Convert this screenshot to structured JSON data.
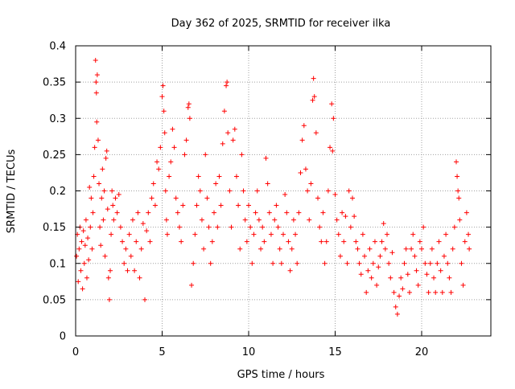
{
  "chart_data": {
    "type": "scatter",
    "title": "Day 362 of 2025, SRMTID for receiver ilka",
    "xlabel": "GPS time / hours",
    "ylabel": "SRMTID / TECUs",
    "xlim": [
      0,
      24
    ],
    "ylim": [
      0,
      0.4
    ],
    "xticks": [
      0,
      5,
      10,
      15,
      20
    ],
    "xtick_labels": [
      "0",
      "5",
      "10",
      "15",
      "20"
    ],
    "yticks": [
      0,
      0.05,
      0.1,
      0.15,
      0.2,
      0.25,
      0.3,
      0.35,
      0.4
    ],
    "ytick_labels": [
      "0",
      "0.05",
      "0.1",
      "0.15",
      "0.2",
      "0.25",
      "0.3",
      "0.35",
      "0.4"
    ],
    "grid": true,
    "legend": "none",
    "marker": "+",
    "series": [
      {
        "color": "#ff0000",
        "points": [
          [
            0.05,
            0.11
          ],
          [
            0.1,
            0.14
          ],
          [
            0.15,
            0.075
          ],
          [
            0.2,
            0.12
          ],
          [
            0.25,
            0.15
          ],
          [
            0.3,
            0.09
          ],
          [
            0.35,
            0.13
          ],
          [
            0.4,
            0.065
          ],
          [
            0.45,
            0.145
          ],
          [
            0.5,
            0.1
          ],
          [
            0.55,
            0.125
          ],
          [
            0.6,
            0.16
          ],
          [
            0.65,
            0.08
          ],
          [
            0.7,
            0.135
          ],
          [
            0.75,
            0.105
          ],
          [
            0.8,
            0.205
          ],
          [
            0.85,
            0.15
          ],
          [
            0.9,
            0.19
          ],
          [
            0.95,
            0.12
          ],
          [
            1.0,
            0.17
          ],
          [
            1.05,
            0.22
          ],
          [
            1.1,
            0.26
          ],
          [
            1.15,
            0.38
          ],
          [
            1.18,
            0.35
          ],
          [
            1.2,
            0.335
          ],
          [
            1.22,
            0.295
          ],
          [
            1.25,
            0.36
          ],
          [
            1.3,
            0.27
          ],
          [
            1.35,
            0.21
          ],
          [
            1.4,
            0.15
          ],
          [
            1.45,
            0.125
          ],
          [
            1.5,
            0.19
          ],
          [
            1.55,
            0.23
          ],
          [
            1.6,
            0.16
          ],
          [
            1.65,
            0.2
          ],
          [
            1.7,
            0.11
          ],
          [
            1.75,
            0.245
          ],
          [
            1.8,
            0.255
          ],
          [
            1.85,
            0.175
          ],
          [
            1.9,
            0.08
          ],
          [
            1.95,
            0.05
          ],
          [
            2.0,
            0.09
          ],
          [
            2.05,
            0.14
          ],
          [
            2.1,
            0.2
          ],
          [
            2.15,
            0.18
          ],
          [
            2.2,
            0.16
          ],
          [
            2.3,
            0.19
          ],
          [
            2.4,
            0.17
          ],
          [
            2.5,
            0.195
          ],
          [
            2.6,
            0.15
          ],
          [
            2.7,
            0.13
          ],
          [
            2.8,
            0.1
          ],
          [
            2.9,
            0.12
          ],
          [
            3.0,
            0.09
          ],
          [
            3.1,
            0.14
          ],
          [
            3.2,
            0.11
          ],
          [
            3.3,
            0.16
          ],
          [
            3.4,
            0.09
          ],
          [
            3.5,
            0.13
          ],
          [
            3.6,
            0.17
          ],
          [
            3.7,
            0.08
          ],
          [
            3.8,
            0.12
          ],
          [
            3.9,
            0.155
          ],
          [
            4.0,
            0.05
          ],
          [
            4.1,
            0.145
          ],
          [
            4.2,
            0.17
          ],
          [
            4.3,
            0.13
          ],
          [
            4.4,
            0.19
          ],
          [
            4.5,
            0.21
          ],
          [
            4.6,
            0.18
          ],
          [
            4.7,
            0.24
          ],
          [
            4.8,
            0.23
          ],
          [
            4.9,
            0.26
          ],
          [
            5.0,
            0.33
          ],
          [
            5.05,
            0.345
          ],
          [
            5.1,
            0.31
          ],
          [
            5.15,
            0.28
          ],
          [
            5.2,
            0.2
          ],
          [
            5.25,
            0.16
          ],
          [
            5.3,
            0.14
          ],
          [
            5.4,
            0.22
          ],
          [
            5.5,
            0.24
          ],
          [
            5.6,
            0.285
          ],
          [
            5.7,
            0.26
          ],
          [
            5.8,
            0.19
          ],
          [
            5.9,
            0.17
          ],
          [
            6.0,
            0.15
          ],
          [
            6.1,
            0.13
          ],
          [
            6.2,
            0.18
          ],
          [
            6.3,
            0.25
          ],
          [
            6.4,
            0.27
          ],
          [
            6.5,
            0.315
          ],
          [
            6.55,
            0.32
          ],
          [
            6.6,
            0.3
          ],
          [
            6.7,
            0.07
          ],
          [
            6.8,
            0.1
          ],
          [
            6.9,
            0.14
          ],
          [
            7.0,
            0.18
          ],
          [
            7.1,
            0.22
          ],
          [
            7.2,
            0.2
          ],
          [
            7.3,
            0.16
          ],
          [
            7.4,
            0.12
          ],
          [
            7.5,
            0.25
          ],
          [
            7.6,
            0.19
          ],
          [
            7.7,
            0.15
          ],
          [
            7.8,
            0.1
          ],
          [
            7.9,
            0.13
          ],
          [
            8.0,
            0.17
          ],
          [
            8.1,
            0.21
          ],
          [
            8.2,
            0.15
          ],
          [
            8.3,
            0.22
          ],
          [
            8.4,
            0.18
          ],
          [
            8.5,
            0.265
          ],
          [
            8.6,
            0.31
          ],
          [
            8.7,
            0.345
          ],
          [
            8.75,
            0.35
          ],
          [
            8.8,
            0.28
          ],
          [
            8.9,
            0.2
          ],
          [
            9.0,
            0.15
          ],
          [
            9.1,
            0.27
          ],
          [
            9.2,
            0.285
          ],
          [
            9.3,
            0.22
          ],
          [
            9.4,
            0.18
          ],
          [
            9.5,
            0.12
          ],
          [
            9.6,
            0.25
          ],
          [
            9.7,
            0.2
          ],
          [
            9.8,
            0.16
          ],
          [
            9.9,
            0.13
          ],
          [
            10.0,
            0.18
          ],
          [
            10.1,
            0.15
          ],
          [
            10.2,
            0.1
          ],
          [
            10.3,
            0.14
          ],
          [
            10.4,
            0.17
          ],
          [
            10.5,
            0.2
          ],
          [
            10.6,
            0.16
          ],
          [
            10.7,
            0.12
          ],
          [
            10.8,
            0.15
          ],
          [
            10.9,
            0.13
          ],
          [
            11.0,
            0.245
          ],
          [
            11.1,
            0.21
          ],
          [
            11.2,
            0.17
          ],
          [
            11.3,
            0.14
          ],
          [
            11.4,
            0.1
          ],
          [
            11.5,
            0.16
          ],
          [
            11.6,
            0.18
          ],
          [
            11.7,
            0.15
          ],
          [
            11.8,
            0.12
          ],
          [
            11.9,
            0.1
          ],
          [
            12.0,
            0.14
          ],
          [
            12.1,
            0.195
          ],
          [
            12.2,
            0.17
          ],
          [
            12.3,
            0.13
          ],
          [
            12.4,
            0.09
          ],
          [
            12.5,
            0.12
          ],
          [
            12.6,
            0.16
          ],
          [
            12.7,
            0.14
          ],
          [
            12.8,
            0.1
          ],
          [
            12.9,
            0.17
          ],
          [
            13.0,
            0.225
          ],
          [
            13.1,
            0.27
          ],
          [
            13.2,
            0.29
          ],
          [
            13.3,
            0.23
          ],
          [
            13.4,
            0.2
          ],
          [
            13.5,
            0.16
          ],
          [
            13.6,
            0.21
          ],
          [
            13.7,
            0.325
          ],
          [
            13.75,
            0.355
          ],
          [
            13.8,
            0.33
          ],
          [
            13.9,
            0.28
          ],
          [
            14.0,
            0.19
          ],
          [
            14.1,
            0.15
          ],
          [
            14.2,
            0.13
          ],
          [
            14.3,
            0.17
          ],
          [
            14.4,
            0.1
          ],
          [
            14.5,
            0.13
          ],
          [
            14.6,
            0.2
          ],
          [
            14.7,
            0.26
          ],
          [
            14.8,
            0.32
          ],
          [
            14.85,
            0.255
          ],
          [
            14.9,
            0.3
          ],
          [
            15.0,
            0.195
          ],
          [
            15.1,
            0.16
          ],
          [
            15.2,
            0.14
          ],
          [
            15.3,
            0.11
          ],
          [
            15.4,
            0.17
          ],
          [
            15.5,
            0.13
          ],
          [
            15.6,
            0.165
          ],
          [
            15.7,
            0.1
          ],
          [
            15.8,
            0.2
          ],
          [
            15.9,
            0.15
          ],
          [
            16.0,
            0.19
          ],
          [
            16.1,
            0.165
          ],
          [
            16.2,
            0.13
          ],
          [
            16.3,
            0.12
          ],
          [
            16.4,
            0.1
          ],
          [
            16.5,
            0.085
          ],
          [
            16.6,
            0.14
          ],
          [
            16.7,
            0.11
          ],
          [
            16.8,
            0.06
          ],
          [
            16.9,
            0.09
          ],
          [
            17.0,
            0.12
          ],
          [
            17.1,
            0.08
          ],
          [
            17.2,
            0.1
          ],
          [
            17.3,
            0.13
          ],
          [
            17.4,
            0.07
          ],
          [
            17.5,
            0.095
          ],
          [
            17.6,
            0.11
          ],
          [
            17.7,
            0.13
          ],
          [
            17.8,
            0.155
          ],
          [
            17.9,
            0.12
          ],
          [
            18.0,
            0.14
          ],
          [
            18.1,
            0.1
          ],
          [
            18.2,
            0.08
          ],
          [
            18.3,
            0.115
          ],
          [
            18.4,
            0.06
          ],
          [
            18.5,
            0.04
          ],
          [
            18.6,
            0.03
          ],
          [
            18.7,
            0.055
          ],
          [
            18.8,
            0.08
          ],
          [
            18.9,
            0.065
          ],
          [
            19.0,
            0.1
          ],
          [
            19.1,
            0.12
          ],
          [
            19.2,
            0.085
          ],
          [
            19.3,
            0.06
          ],
          [
            19.4,
            0.12
          ],
          [
            19.5,
            0.14
          ],
          [
            19.6,
            0.11
          ],
          [
            19.7,
            0.09
          ],
          [
            19.8,
            0.07
          ],
          [
            19.9,
            0.13
          ],
          [
            20.0,
            0.12
          ],
          [
            20.1,
            0.15
          ],
          [
            20.2,
            0.1
          ],
          [
            20.3,
            0.085
          ],
          [
            20.4,
            0.06
          ],
          [
            20.5,
            0.1
          ],
          [
            20.6,
            0.12
          ],
          [
            20.7,
            0.08
          ],
          [
            20.8,
            0.06
          ],
          [
            20.9,
            0.1
          ],
          [
            21.0,
            0.13
          ],
          [
            21.1,
            0.09
          ],
          [
            21.2,
            0.06
          ],
          [
            21.3,
            0.11
          ],
          [
            21.4,
            0.14
          ],
          [
            21.5,
            0.1
          ],
          [
            21.6,
            0.08
          ],
          [
            21.7,
            0.06
          ],
          [
            21.8,
            0.12
          ],
          [
            21.9,
            0.15
          ],
          [
            22.0,
            0.24
          ],
          [
            22.05,
            0.22
          ],
          [
            22.1,
            0.2
          ],
          [
            22.15,
            0.19
          ],
          [
            22.2,
            0.16
          ],
          [
            22.3,
            0.1
          ],
          [
            22.4,
            0.07
          ],
          [
            22.5,
            0.13
          ],
          [
            22.6,
            0.17
          ],
          [
            22.7,
            0.14
          ],
          [
            22.75,
            0.12
          ]
        ]
      }
    ]
  }
}
